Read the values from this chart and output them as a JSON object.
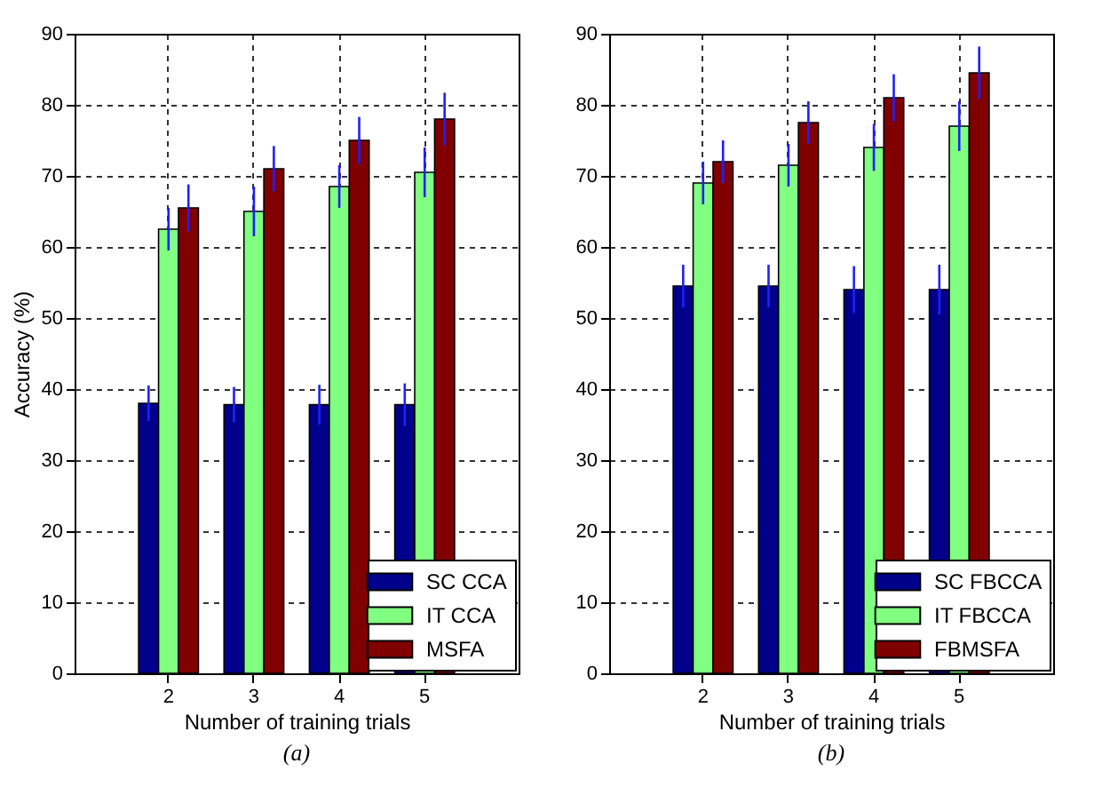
{
  "chart_data": [
    {
      "type": "bar",
      "categories": [
        "2",
        "3",
        "4",
        "5"
      ],
      "series": [
        {
          "name": "SC CCA",
          "color": "#00008b",
          "values": [
            38,
            37.8,
            37.8,
            37.8
          ],
          "errors": [
            2.5,
            2.5,
            2.8,
            3
          ]
        },
        {
          "name": "IT CCA",
          "color": "#80ff80",
          "values": [
            62.5,
            65,
            68.5,
            70.5
          ],
          "errors": [
            3,
            3.5,
            3,
            3.5
          ]
        },
        {
          "name": "MSFA",
          "color": "#800000",
          "values": [
            65.5,
            71,
            75,
            78
          ],
          "errors": [
            3.3,
            3.2,
            3.3,
            3.7
          ]
        }
      ],
      "ylim": [
        0,
        90
      ],
      "yticks": [
        0,
        10,
        20,
        30,
        40,
        50,
        60,
        70,
        80,
        90
      ],
      "xlabel": "Number of training trials",
      "ylabel": "Accuracy (%)",
      "annotations": [
        "(a)"
      ],
      "grid": true,
      "legend": "bottom right"
    },
    {
      "type": "bar",
      "categories": [
        "2",
        "3",
        "4",
        "5"
      ],
      "series": [
        {
          "name": "SC FBCCA",
          "color": "#00008b",
          "values": [
            54.5,
            54.5,
            54,
            54
          ],
          "errors": [
            3,
            3,
            3.3,
            3.5
          ]
        },
        {
          "name": "IT FBCCA",
          "color": "#80ff80",
          "values": [
            69,
            71.5,
            74,
            77
          ],
          "errors": [
            3,
            3,
            3.3,
            3.5
          ]
        },
        {
          "name": "FBMSFA",
          "color": "#800000",
          "values": [
            72,
            77.5,
            81,
            84.5
          ],
          "errors": [
            3,
            3,
            3.3,
            3.7
          ]
        }
      ],
      "ylim": [
        0,
        90
      ],
      "yticks": [
        0,
        10,
        20,
        30,
        40,
        50,
        60,
        70,
        80,
        90
      ],
      "xlabel": "Number of training trials",
      "annotations": [
        "(b)"
      ],
      "grid": true,
      "legend": "bottom right"
    }
  ]
}
